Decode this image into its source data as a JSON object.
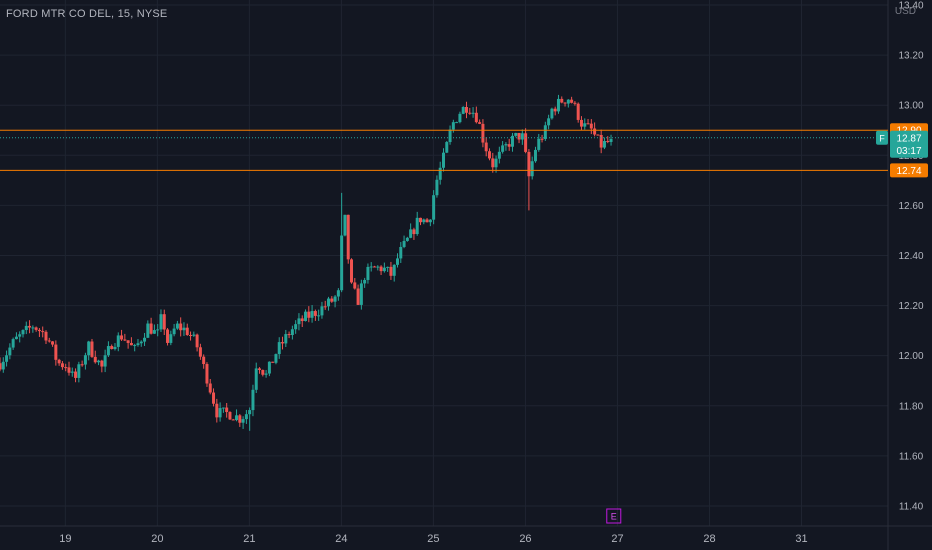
{
  "chart_data": {
    "type": "candlestick",
    "title": "FORD MTR CO DEL, 15, NYSE",
    "currency": "USD",
    "ylim": [
      11.32,
      13.42
    ],
    "y_ticks": [
      "13.40",
      "13.20",
      "13.00",
      "12.80",
      "12.60",
      "12.40",
      "12.20",
      "12.00",
      "11.80",
      "11.60",
      "11.40"
    ],
    "x_ticks": [
      {
        "label": "19",
        "t": 1
      },
      {
        "label": "20",
        "t": 2
      },
      {
        "label": "21",
        "t": 3
      },
      {
        "label": "24",
        "t": 4
      },
      {
        "label": "25",
        "t": 5
      },
      {
        "label": "26",
        "t": 6
      },
      {
        "label": "27",
        "t": 7
      },
      {
        "label": "28",
        "t": 8
      },
      {
        "label": "31",
        "t": 9
      }
    ],
    "xlim": [
      0.29,
      9.94
    ],
    "horizontal_lines": [
      {
        "value": 12.9,
        "label": "12.90",
        "color": "#f57c00"
      },
      {
        "value": 12.74,
        "label": "12.74",
        "color": "#f57c00"
      }
    ],
    "current_price": {
      "value": 12.87,
      "label": "12.87",
      "countdown": "03:17",
      "symbol": "F",
      "color": "#26a69a"
    },
    "earnings_marker": {
      "label": "E",
      "t": 6.96
    },
    "colors": {
      "up": "#26a69a",
      "down": "#ef5350",
      "grid": "#1f2431",
      "axis_text": "#b2b5be"
    },
    "anchors": [
      [
        0.29,
        11.97
      ],
      [
        0.45,
        12.06
      ],
      [
        0.65,
        12.12
      ],
      [
        0.8,
        12.08
      ],
      [
        0.92,
        11.97
      ],
      [
        1.02,
        11.96
      ],
      [
        1.1,
        11.9
      ],
      [
        1.25,
        12.04
      ],
      [
        1.4,
        11.95
      ],
      [
        1.5,
        12.05
      ],
      [
        1.62,
        12.08
      ],
      [
        1.75,
        12.02
      ],
      [
        1.9,
        12.12
      ],
      [
        2.0,
        12.08
      ],
      [
        2.05,
        12.16
      ],
      [
        2.12,
        12.04
      ],
      [
        2.2,
        12.12
      ],
      [
        2.32,
        12.1
      ],
      [
        2.42,
        12.05
      ],
      [
        2.55,
        11.9
      ],
      [
        2.65,
        11.77
      ],
      [
        2.78,
        11.77
      ],
      [
        2.9,
        11.75
      ],
      [
        3.0,
        11.78
      ],
      [
        3.08,
        11.98
      ],
      [
        3.18,
        11.92
      ],
      [
        3.3,
        12.02
      ],
      [
        3.45,
        12.1
      ],
      [
        3.6,
        12.15
      ],
      [
        3.75,
        12.18
      ],
      [
        3.9,
        12.22
      ],
      [
        3.98,
        12.25
      ],
      [
        4.02,
        12.62
      ],
      [
        4.06,
        12.45
      ],
      [
        4.1,
        12.28
      ],
      [
        4.18,
        12.22
      ],
      [
        4.25,
        12.32
      ],
      [
        4.35,
        12.35
      ],
      [
        4.45,
        12.35
      ],
      [
        4.55,
        12.32
      ],
      [
        4.62,
        12.4
      ],
      [
        4.75,
        12.48
      ],
      [
        4.85,
        12.55
      ],
      [
        4.95,
        12.53
      ],
      [
        5.02,
        12.68
      ],
      [
        5.12,
        12.8
      ],
      [
        5.2,
        12.92
      ],
      [
        5.3,
        12.98
      ],
      [
        5.38,
        13.0
      ],
      [
        5.48,
        12.95
      ],
      [
        5.55,
        12.85
      ],
      [
        5.65,
        12.76
      ],
      [
        5.72,
        12.8
      ],
      [
        5.82,
        12.85
      ],
      [
        5.92,
        12.88
      ],
      [
        5.98,
        12.87
      ],
      [
        6.03,
        12.7
      ],
      [
        6.1,
        12.82
      ],
      [
        6.15,
        12.86
      ],
      [
        6.22,
        12.9
      ],
      [
        6.28,
        12.98
      ],
      [
        6.4,
        13.02
      ],
      [
        6.48,
        13.03
      ],
      [
        6.55,
        12.98
      ],
      [
        6.62,
        12.92
      ],
      [
        6.72,
        12.9
      ],
      [
        6.78,
        12.86
      ],
      [
        6.82,
        12.84
      ],
      [
        6.95,
        12.86
      ]
    ],
    "extremes": [
      {
        "t": 3.02,
        "low": 11.7
      },
      {
        "t": 4.02,
        "high": 12.65
      },
      {
        "t": 6.03,
        "low": 12.58
      }
    ]
  }
}
